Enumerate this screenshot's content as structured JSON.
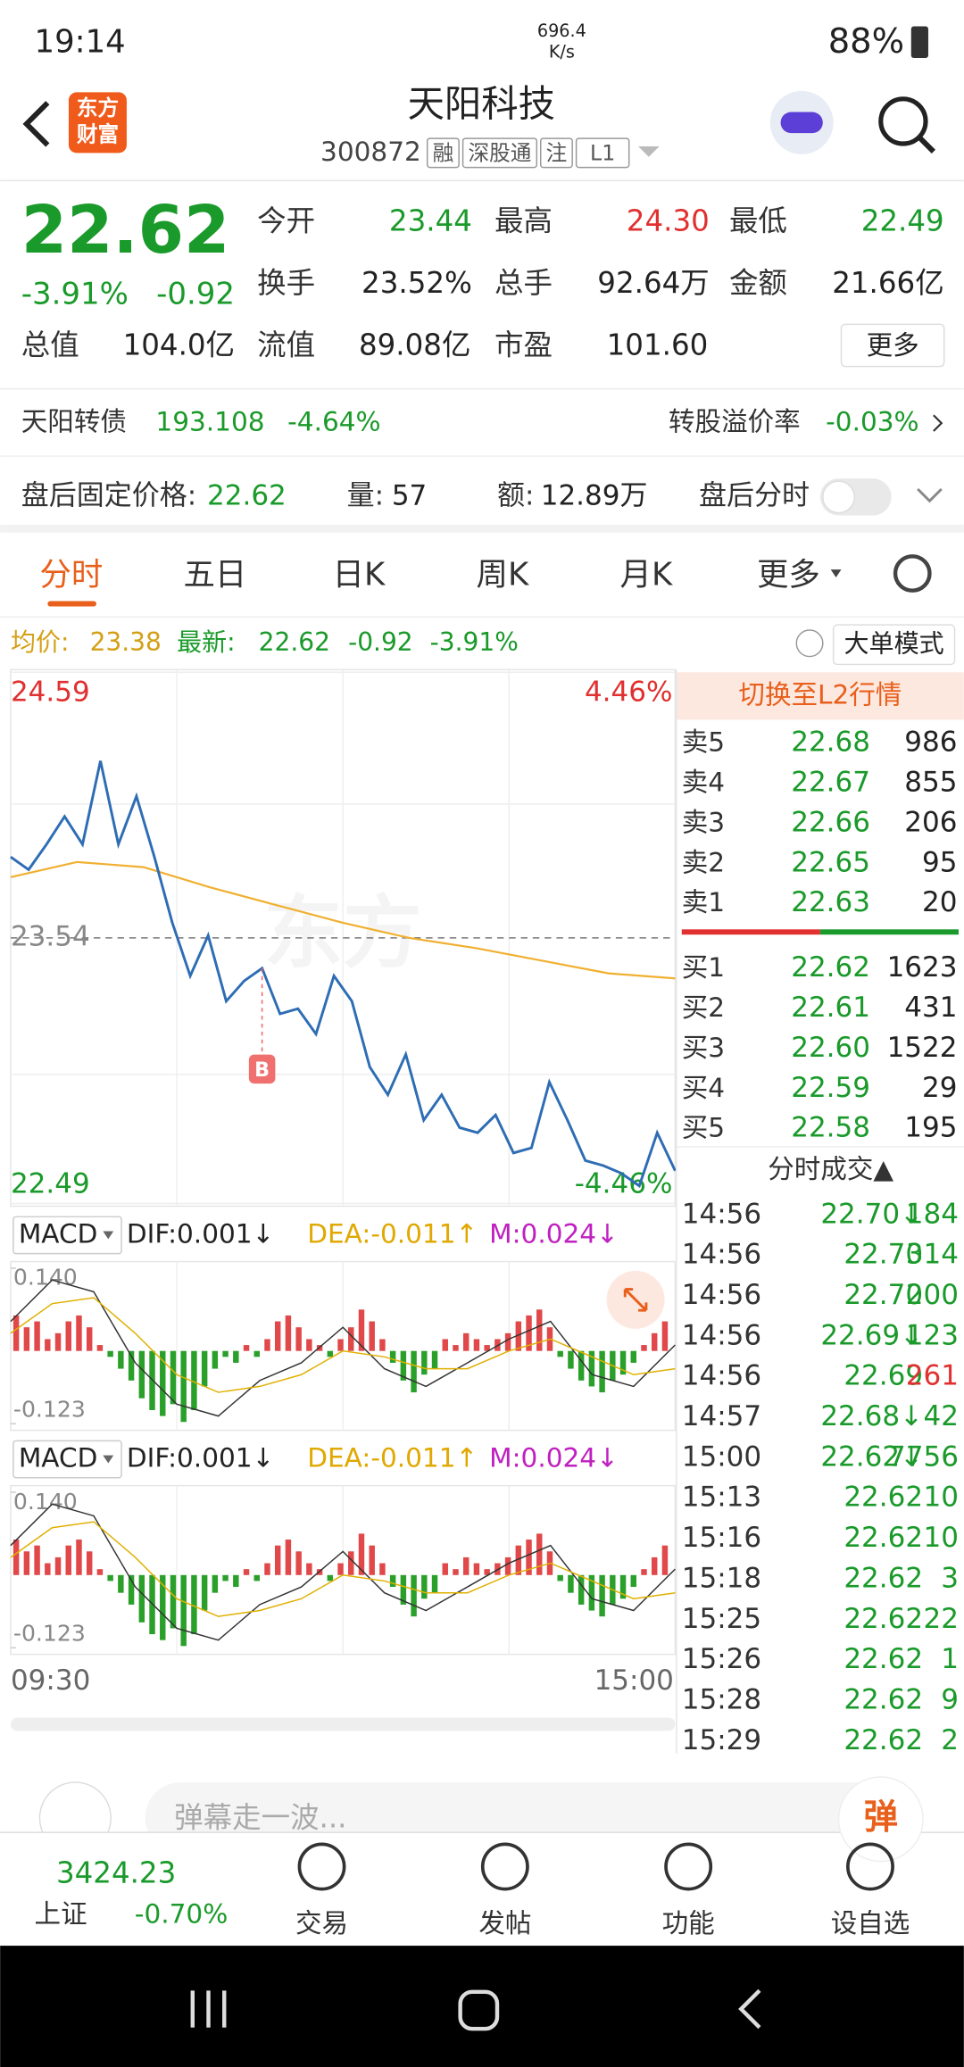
{
  "status_bar": {
    "time": "19:14",
    "net_speed": "696.4",
    "net_unit": "K/s",
    "battery": "88%"
  },
  "header": {
    "logo": [
      "东方",
      "财富"
    ],
    "title": "天阳科技",
    "code": "300872",
    "tags": [
      "融",
      "深股通",
      "注",
      "L1"
    ]
  },
  "quote": {
    "price": "22.62",
    "change_pct": "-3.91%",
    "change": "-0.92",
    "more": "更多",
    "fields": [
      {
        "label": "今开",
        "value": "23.44",
        "color": "#1a9a2a"
      },
      {
        "label": "最高",
        "value": "24.30",
        "color": "#e03030"
      },
      {
        "label": "最低",
        "value": "22.49",
        "color": "#1a9a2a"
      },
      {
        "label": "换手",
        "value": "23.52%",
        "color": "#222222"
      },
      {
        "label": "总手",
        "value": "92.64万",
        "color": "#222222"
      },
      {
        "label": "金额",
        "value": "21.66亿",
        "color": "#222222"
      },
      {
        "label": "总值",
        "value": "104.0亿",
        "color": "#222222"
      },
      {
        "label": "流值",
        "value": "89.08亿",
        "color": "#222222"
      },
      {
        "label": "市盈",
        "value": "101.60",
        "color": "#222222"
      }
    ]
  },
  "bond": {
    "name": "天阳转债",
    "price": "193.108",
    "change": "-4.64%",
    "premium_label": "转股溢价率",
    "premium": "-0.03%"
  },
  "after_hours": {
    "price_label": "盘后固定价格:",
    "price": "22.62",
    "volume_label": "量:",
    "volume": "57",
    "amount_label": "额:",
    "amount": "12.89万",
    "chart_label": "盘后分时"
  },
  "tabs": [
    "分时",
    "五日",
    "日K",
    "周K",
    "月K",
    "更多"
  ],
  "info_bar": {
    "avg_label": "均价:",
    "avg": "23.38",
    "latest_label": "最新:",
    "latest": "22.62",
    "change": "-0.92",
    "change_pct": "-3.91%",
    "mode": "大单模式"
  },
  "intraday": {
    "ylim": [
      22.49,
      24.59
    ],
    "yticks": [
      22.49,
      23.54,
      24.59
    ],
    "pct_top": "4.46%",
    "pct_bottom": "-4.46%",
    "marker": "B",
    "price": [
      23.86,
      23.81,
      23.91,
      24.02,
      23.91,
      24.24,
      23.91,
      24.1,
      23.86,
      23.6,
      23.39,
      23.55,
      23.29,
      23.37,
      23.42,
      23.24,
      23.26,
      23.16,
      23.39,
      23.29,
      23.03,
      22.92,
      23.08,
      22.82,
      22.92,
      22.79,
      22.77,
      22.84,
      22.69,
      22.71,
      22.97,
      22.82,
      22.66,
      22.64,
      22.61,
      22.56,
      22.77,
      22.62
    ],
    "avg": [
      23.78,
      23.84,
      23.82,
      23.74,
      23.67,
      23.6,
      23.54,
      23.5,
      23.45,
      23.4,
      23.38
    ],
    "x_labels": [
      "09:30",
      "15:00"
    ]
  },
  "macd": {
    "name": "MACD",
    "dif": "DIF:0.001↓",
    "dea": "DEA:-0.011↑",
    "m": "M:0.024↓",
    "ylim": [
      -0.123,
      0.14
    ],
    "yticks": [
      -0.123,
      {
        "value": 0.14,
        "label": "0.140"
      }
    ],
    "histogram": [
      0.06,
      0.04,
      0.05,
      0.02,
      0.03,
      0.05,
      0.06,
      0.04,
      0.01,
      -0.01,
      -0.03,
      -0.05,
      -0.08,
      -0.1,
      -0.11,
      -0.09,
      -0.12,
      -0.1,
      -0.06,
      -0.03,
      -0.01,
      -0.02,
      0.01,
      -0.01,
      0.02,
      0.05,
      0.06,
      0.04,
      0.02,
      0.01,
      -0.01,
      0.02,
      0.04,
      0.07,
      0.05,
      0.02,
      -0.02,
      -0.05,
      -0.07,
      -0.04,
      -0.03,
      0.02,
      0.01,
      0.03,
      0.02,
      0.01,
      0.02,
      0.03,
      0.05,
      0.06,
      0.07,
      0.04,
      -0.01,
      -0.03,
      -0.05,
      -0.06,
      -0.07,
      -0.05,
      -0.04,
      -0.02,
      0.01,
      0.03,
      0.05
    ],
    "dif_line": [
      0.05,
      0.12,
      0.1,
      -0.02,
      -0.09,
      -0.11,
      -0.05,
      -0.02,
      0.04,
      -0.03,
      -0.06,
      -0.02,
      0.02,
      0.05,
      -0.04,
      -0.06,
      0.01
    ],
    "dea_line": [
      0.03,
      0.08,
      0.09,
      0.03,
      -0.04,
      -0.07,
      -0.06,
      -0.04,
      0,
      -0.01,
      -0.03,
      -0.03,
      0,
      0.02,
      -0.01,
      -0.04,
      -0.03
    ]
  },
  "order_book": {
    "l2": "切换至L2行情",
    "asks": [
      {
        "label": "卖5",
        "price": "22.68",
        "volume": "986"
      },
      {
        "label": "卖4",
        "price": "22.67",
        "volume": "855"
      },
      {
        "label": "卖3",
        "price": "22.66",
        "volume": "206"
      },
      {
        "label": "卖2",
        "price": "22.65",
        "volume": "95"
      },
      {
        "label": "卖1",
        "price": "22.63",
        "volume": "20"
      }
    ],
    "bids": [
      {
        "label": "买1",
        "price": "22.62",
        "volume": "1623"
      },
      {
        "label": "买2",
        "price": "22.61",
        "volume": "431"
      },
      {
        "label": "买3",
        "price": "22.60",
        "volume": "1522"
      },
      {
        "label": "买4",
        "price": "22.59",
        "volume": "29"
      },
      {
        "label": "买5",
        "price": "22.58",
        "volume": "195"
      }
    ]
  },
  "trades": {
    "title": "分时成交▲",
    "rows": [
      {
        "time": "14:56",
        "price": "22.70↓",
        "volume": "184",
        "color": "#1a9a2a"
      },
      {
        "time": "14:56",
        "price": "22.70",
        "volume": "314",
        "color": "#1a9a2a"
      },
      {
        "time": "14:56",
        "price": "22.70",
        "volume": "200",
        "color": "#1a9a2a"
      },
      {
        "time": "14:56",
        "price": "22.69↓",
        "volume": "123",
        "color": "#1a9a2a"
      },
      {
        "time": "14:56",
        "price": "22.69",
        "volume": "261",
        "color": "#e03030"
      },
      {
        "time": "14:57",
        "price": "22.68↓",
        "volume": "42",
        "color": "#1a9a2a"
      },
      {
        "time": "15:00",
        "price": "22.62↓",
        "volume": "7756",
        "color": "#1a9a2a"
      },
      {
        "time": "15:13",
        "price": "22.62",
        "volume": "10",
        "color": "#1a9a2a"
      },
      {
        "time": "15:16",
        "price": "22.62",
        "volume": "10",
        "color": "#1a9a2a"
      },
      {
        "time": "15:18",
        "price": "22.62",
        "volume": "3",
        "color": "#1a9a2a"
      },
      {
        "time": "15:25",
        "price": "22.62",
        "volume": "22",
        "color": "#1a9a2a"
      },
      {
        "time": "15:26",
        "price": "22.62",
        "volume": "1",
        "color": "#1a9a2a"
      },
      {
        "time": "15:28",
        "price": "22.62",
        "volume": "9",
        "color": "#1a9a2a"
      },
      {
        "time": "15:29",
        "price": "22.62",
        "volume": "2",
        "color": "#1a9a2a"
      }
    ]
  },
  "comment": {
    "placeholder": "弹幕走一波...",
    "button": "弹"
  },
  "bottom_nav": {
    "index_value": "3424.23",
    "index_name": "上证",
    "index_change": "-0.70%",
    "items": [
      "交易",
      "发帖",
      "功能",
      "设自选"
    ]
  }
}
